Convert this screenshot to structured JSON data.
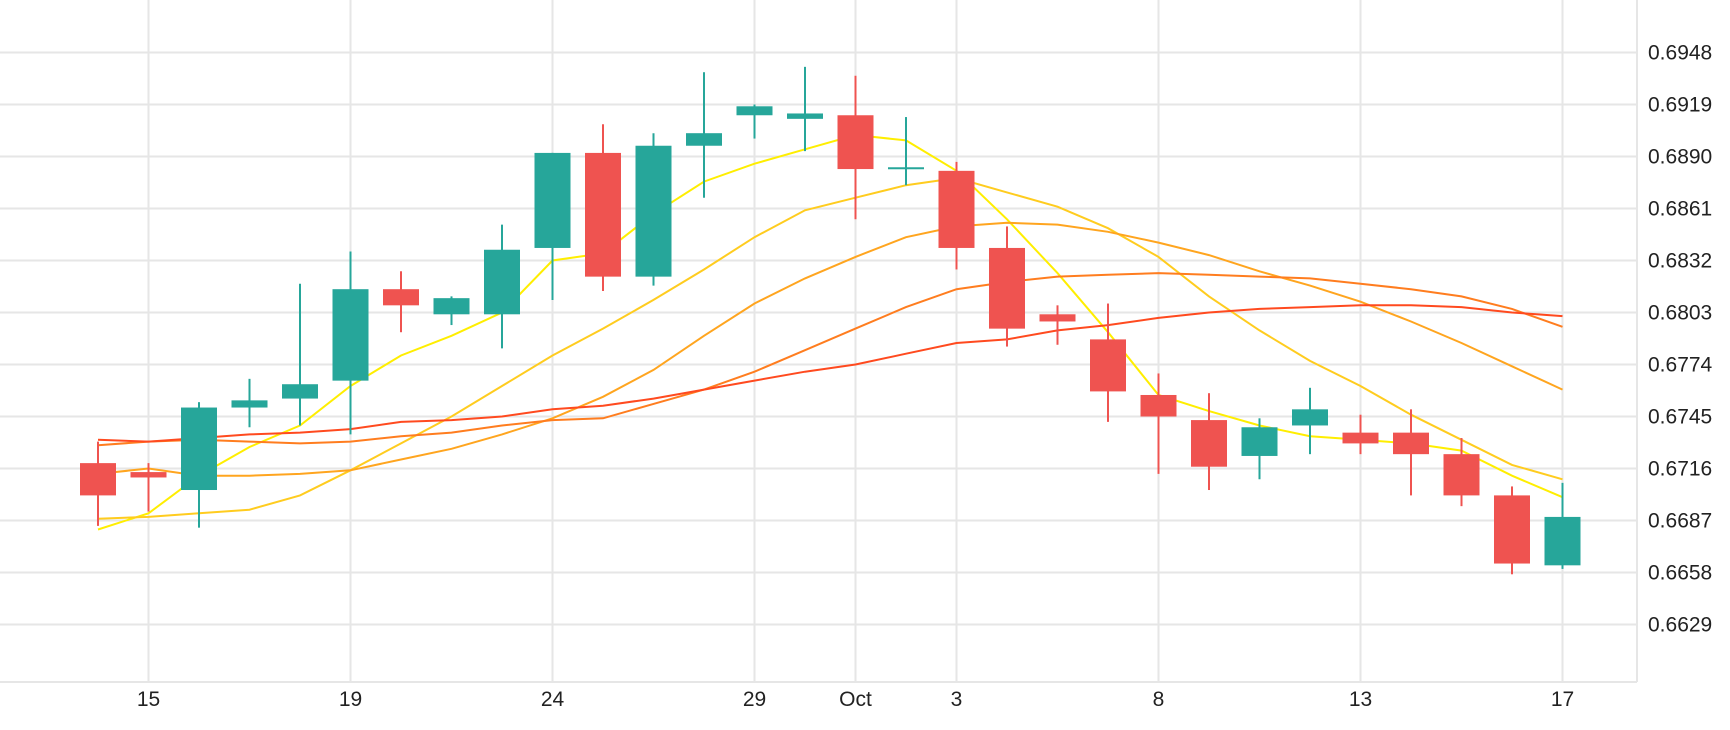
{
  "chart_data": {
    "type": "candlestick",
    "title": "",
    "xlabel": "",
    "ylabel": "",
    "ylim": [
      0.66,
      0.697
    ],
    "y_ticks": [
      "0.6629",
      "0.6658",
      "0.6687",
      "0.6716",
      "0.6745",
      "0.6774",
      "0.6803",
      "0.6832",
      "0.6861",
      "0.6890",
      "0.6919",
      "0.6948"
    ],
    "x_ticks": [
      {
        "label": "15",
        "slot": 1
      },
      {
        "label": "19",
        "slot": 5
      },
      {
        "label": "24",
        "slot": 9
      },
      {
        "label": "29",
        "slot": 13
      },
      {
        "label": "Oct",
        "slot": 15
      },
      {
        "label": "3",
        "slot": 17
      },
      {
        "label": "8",
        "slot": 21
      },
      {
        "label": "13",
        "slot": 25
      },
      {
        "label": "17",
        "slot": 29
      }
    ],
    "grid": true,
    "colors": {
      "up": "#26a69a",
      "down": "#ef5350"
    },
    "candles": [
      {
        "slot": 0,
        "open": 0.6719,
        "high": 0.6731,
        "low": 0.6684,
        "close": 0.6701
      },
      {
        "slot": 1,
        "open": 0.6714,
        "high": 0.6719,
        "low": 0.6692,
        "close": 0.6711
      },
      {
        "slot": 2,
        "open": 0.6704,
        "high": 0.6753,
        "low": 0.6683,
        "close": 0.675
      },
      {
        "slot": 3,
        "open": 0.675,
        "high": 0.6766,
        "low": 0.6739,
        "close": 0.6754
      },
      {
        "slot": 4,
        "open": 0.6755,
        "high": 0.6819,
        "low": 0.674,
        "close": 0.6763
      },
      {
        "slot": 5,
        "open": 0.6765,
        "high": 0.6837,
        "low": 0.6735,
        "close": 0.6816
      },
      {
        "slot": 6,
        "open": 0.6816,
        "high": 0.6826,
        "low": 0.6792,
        "close": 0.6807
      },
      {
        "slot": 7,
        "open": 0.6802,
        "high": 0.6812,
        "low": 0.6796,
        "close": 0.6811
      },
      {
        "slot": 8,
        "open": 0.6802,
        "high": 0.6852,
        "low": 0.6783,
        "close": 0.6838
      },
      {
        "slot": 9,
        "open": 0.6839,
        "high": 0.6892,
        "low": 0.681,
        "close": 0.6892
      },
      {
        "slot": 10,
        "open": 0.6892,
        "high": 0.6908,
        "low": 0.6815,
        "close": 0.6823
      },
      {
        "slot": 11,
        "open": 0.6823,
        "high": 0.6903,
        "low": 0.6818,
        "close": 0.6896
      },
      {
        "slot": 12,
        "open": 0.6896,
        "high": 0.6937,
        "low": 0.6867,
        "close": 0.6903
      },
      {
        "slot": 13,
        "open": 0.6913,
        "high": 0.6919,
        "low": 0.69,
        "close": 0.6918
      },
      {
        "slot": 14,
        "open": 0.6911,
        "high": 0.694,
        "low": 0.6893,
        "close": 0.6914
      },
      {
        "slot": 15,
        "open": 0.6913,
        "high": 0.6935,
        "low": 0.6855,
        "close": 0.6883
      },
      {
        "slot": 16,
        "open": 0.6884,
        "high": 0.6912,
        "low": 0.6874,
        "close": 0.6884
      },
      {
        "slot": 17,
        "open": 0.6882,
        "high": 0.6887,
        "low": 0.6827,
        "close": 0.6839
      },
      {
        "slot": 18,
        "open": 0.6839,
        "high": 0.6851,
        "low": 0.6784,
        "close": 0.6794
      },
      {
        "slot": 19,
        "open": 0.6802,
        "high": 0.6807,
        "low": 0.6785,
        "close": 0.6798
      },
      {
        "slot": 20,
        "open": 0.6788,
        "high": 0.6808,
        "low": 0.6742,
        "close": 0.6759
      },
      {
        "slot": 21,
        "open": 0.6757,
        "high": 0.6769,
        "low": 0.6713,
        "close": 0.6745
      },
      {
        "slot": 22,
        "open": 0.6743,
        "high": 0.6758,
        "low": 0.6704,
        "close": 0.6717
      },
      {
        "slot": 23,
        "open": 0.6723,
        "high": 0.6744,
        "low": 0.671,
        "close": 0.6739
      },
      {
        "slot": 24,
        "open": 0.674,
        "high": 0.6761,
        "low": 0.6724,
        "close": 0.6749
      },
      {
        "slot": 25,
        "open": 0.6736,
        "high": 0.6746,
        "low": 0.6724,
        "close": 0.673
      },
      {
        "slot": 26,
        "open": 0.6736,
        "high": 0.6749,
        "low": 0.6701,
        "close": 0.6724
      },
      {
        "slot": 27,
        "open": 0.6724,
        "high": 0.6733,
        "low": 0.6695,
        "close": 0.6701
      },
      {
        "slot": 28,
        "open": 0.6701,
        "high": 0.6706,
        "low": 0.6657,
        "close": 0.6663
      },
      {
        "slot": 29,
        "open": 0.6662,
        "high": 0.6708,
        "low": 0.666,
        "close": 0.6689
      }
    ],
    "series": [
      {
        "color": "#ffee00",
        "points": [
          [
            0,
            0.6682
          ],
          [
            1,
            0.6691
          ],
          [
            2,
            0.6712
          ],
          [
            3,
            0.6728
          ],
          [
            4,
            0.674
          ],
          [
            5,
            0.6762
          ],
          [
            6,
            0.6779
          ],
          [
            7,
            0.679
          ],
          [
            8,
            0.6803
          ],
          [
            9,
            0.6832
          ],
          [
            10,
            0.6836
          ],
          [
            11,
            0.6858
          ],
          [
            12,
            0.6876
          ],
          [
            13,
            0.6886
          ],
          [
            14,
            0.6894
          ],
          [
            15,
            0.6902
          ],
          [
            16,
            0.6899
          ],
          [
            17,
            0.6882
          ],
          [
            18,
            0.6855
          ],
          [
            19,
            0.6825
          ],
          [
            20,
            0.6792
          ],
          [
            21,
            0.6757
          ],
          [
            22,
            0.6748
          ],
          [
            23,
            0.674
          ],
          [
            24,
            0.6734
          ],
          [
            25,
            0.6732
          ],
          [
            26,
            0.673
          ],
          [
            27,
            0.6726
          ],
          [
            28,
            0.6712
          ],
          [
            29,
            0.67
          ]
        ]
      },
      {
        "color": "#ffcc1f",
        "points": [
          [
            0,
            0.6688
          ],
          [
            1,
            0.6689
          ],
          [
            2,
            0.6691
          ],
          [
            3,
            0.6693
          ],
          [
            4,
            0.6701
          ],
          [
            5,
            0.6715
          ],
          [
            6,
            0.673
          ],
          [
            7,
            0.6745
          ],
          [
            8,
            0.6762
          ],
          [
            9,
            0.6779
          ],
          [
            10,
            0.6794
          ],
          [
            11,
            0.681
          ],
          [
            12,
            0.6827
          ],
          [
            13,
            0.6845
          ],
          [
            14,
            0.686
          ],
          [
            15,
            0.6867
          ],
          [
            16,
            0.6874
          ],
          [
            17,
            0.6878
          ],
          [
            18,
            0.687
          ],
          [
            19,
            0.6862
          ],
          [
            20,
            0.685
          ],
          [
            21,
            0.6834
          ],
          [
            22,
            0.6812
          ],
          [
            23,
            0.6793
          ],
          [
            24,
            0.6776
          ],
          [
            25,
            0.6762
          ],
          [
            26,
            0.6746
          ],
          [
            27,
            0.6732
          ],
          [
            28,
            0.6718
          ],
          [
            29,
            0.671
          ]
        ]
      },
      {
        "color": "#ffa51f",
        "points": [
          [
            0,
            0.6713
          ],
          [
            1,
            0.6716
          ],
          [
            2,
            0.6712
          ],
          [
            3,
            0.6712
          ],
          [
            4,
            0.6713
          ],
          [
            5,
            0.6715
          ],
          [
            6,
            0.6721
          ],
          [
            7,
            0.6727
          ],
          [
            8,
            0.6735
          ],
          [
            9,
            0.6744
          ],
          [
            10,
            0.6756
          ],
          [
            11,
            0.6771
          ],
          [
            12,
            0.679
          ],
          [
            13,
            0.6808
          ],
          [
            14,
            0.6822
          ],
          [
            15,
            0.6834
          ],
          [
            16,
            0.6845
          ],
          [
            17,
            0.6851
          ],
          [
            18,
            0.6853
          ],
          [
            19,
            0.6852
          ],
          [
            20,
            0.6848
          ],
          [
            21,
            0.6842
          ],
          [
            22,
            0.6835
          ],
          [
            23,
            0.6826
          ],
          [
            24,
            0.6818
          ],
          [
            25,
            0.6809
          ],
          [
            26,
            0.6798
          ],
          [
            27,
            0.6786
          ],
          [
            28,
            0.6773
          ],
          [
            29,
            0.676
          ]
        ]
      },
      {
        "color": "#ff7d1f",
        "points": [
          [
            0,
            0.6729
          ],
          [
            1,
            0.6731
          ],
          [
            2,
            0.6732
          ],
          [
            3,
            0.6731
          ],
          [
            4,
            0.673
          ],
          [
            5,
            0.6731
          ],
          [
            6,
            0.6734
          ],
          [
            7,
            0.6736
          ],
          [
            8,
            0.674
          ],
          [
            9,
            0.6743
          ],
          [
            10,
            0.6744
          ],
          [
            11,
            0.6752
          ],
          [
            12,
            0.676
          ],
          [
            13,
            0.677
          ],
          [
            14,
            0.6782
          ],
          [
            15,
            0.6794
          ],
          [
            16,
            0.6806
          ],
          [
            17,
            0.6816
          ],
          [
            18,
            0.682
          ],
          [
            19,
            0.6823
          ],
          [
            20,
            0.6824
          ],
          [
            21,
            0.6825
          ],
          [
            22,
            0.6824
          ],
          [
            23,
            0.6823
          ],
          [
            24,
            0.6822
          ],
          [
            25,
            0.6819
          ],
          [
            26,
            0.6816
          ],
          [
            27,
            0.6812
          ],
          [
            28,
            0.6805
          ],
          [
            29,
            0.6795
          ]
        ]
      },
      {
        "color": "#ff4a1f",
        "points": [
          [
            0,
            0.6732
          ],
          [
            1,
            0.6731
          ],
          [
            2,
            0.6733
          ],
          [
            3,
            0.6735
          ],
          [
            4,
            0.6736
          ],
          [
            5,
            0.6738
          ],
          [
            6,
            0.6742
          ],
          [
            7,
            0.6743
          ],
          [
            8,
            0.6745
          ],
          [
            9,
            0.6749
          ],
          [
            10,
            0.6751
          ],
          [
            11,
            0.6755
          ],
          [
            12,
            0.676
          ],
          [
            13,
            0.6765
          ],
          [
            14,
            0.677
          ],
          [
            15,
            0.6774
          ],
          [
            16,
            0.678
          ],
          [
            17,
            0.6786
          ],
          [
            18,
            0.6788
          ],
          [
            19,
            0.6793
          ],
          [
            20,
            0.6796
          ],
          [
            21,
            0.68
          ],
          [
            22,
            0.6803
          ],
          [
            23,
            0.6805
          ],
          [
            24,
            0.6806
          ],
          [
            25,
            0.6807
          ],
          [
            26,
            0.6807
          ],
          [
            27,
            0.6806
          ],
          [
            28,
            0.6803
          ],
          [
            29,
            0.6801
          ]
        ]
      }
    ]
  }
}
